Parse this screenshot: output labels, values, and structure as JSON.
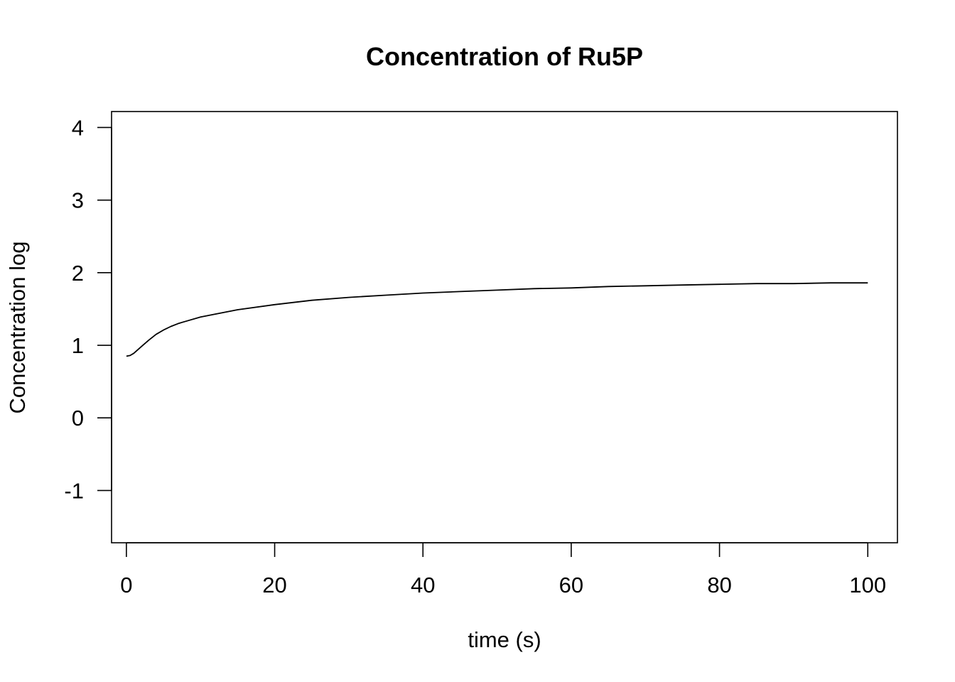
{
  "chart_data": {
    "type": "line",
    "title": "Concentration of Ru5P",
    "xlabel": "time (s)",
    "ylabel": "Concentration log",
    "xlim": [
      -2,
      104
    ],
    "ylim": [
      -1.72,
      4.22
    ],
    "x_ticks": [
      0,
      20,
      40,
      60,
      80,
      100
    ],
    "y_ticks": [
      -1,
      0,
      1,
      2,
      3,
      4
    ],
    "grid": false,
    "legend": "none",
    "line_color": "#000000",
    "series": [
      {
        "x": [
          0,
          0.5,
          1,
          2,
          3,
          4,
          5,
          6,
          7,
          8,
          10,
          12,
          15,
          20,
          25,
          30,
          35,
          40,
          45,
          50,
          55,
          60,
          65,
          70,
          75,
          80,
          85,
          90,
          95,
          100
        ],
        "values": [
          0.85,
          0.86,
          0.89,
          0.98,
          1.07,
          1.15,
          1.21,
          1.26,
          1.3,
          1.33,
          1.39,
          1.43,
          1.49,
          1.56,
          1.62,
          1.66,
          1.69,
          1.72,
          1.74,
          1.76,
          1.78,
          1.79,
          1.81,
          1.82,
          1.83,
          1.84,
          1.85,
          1.85,
          1.86,
          1.86
        ]
      }
    ]
  }
}
